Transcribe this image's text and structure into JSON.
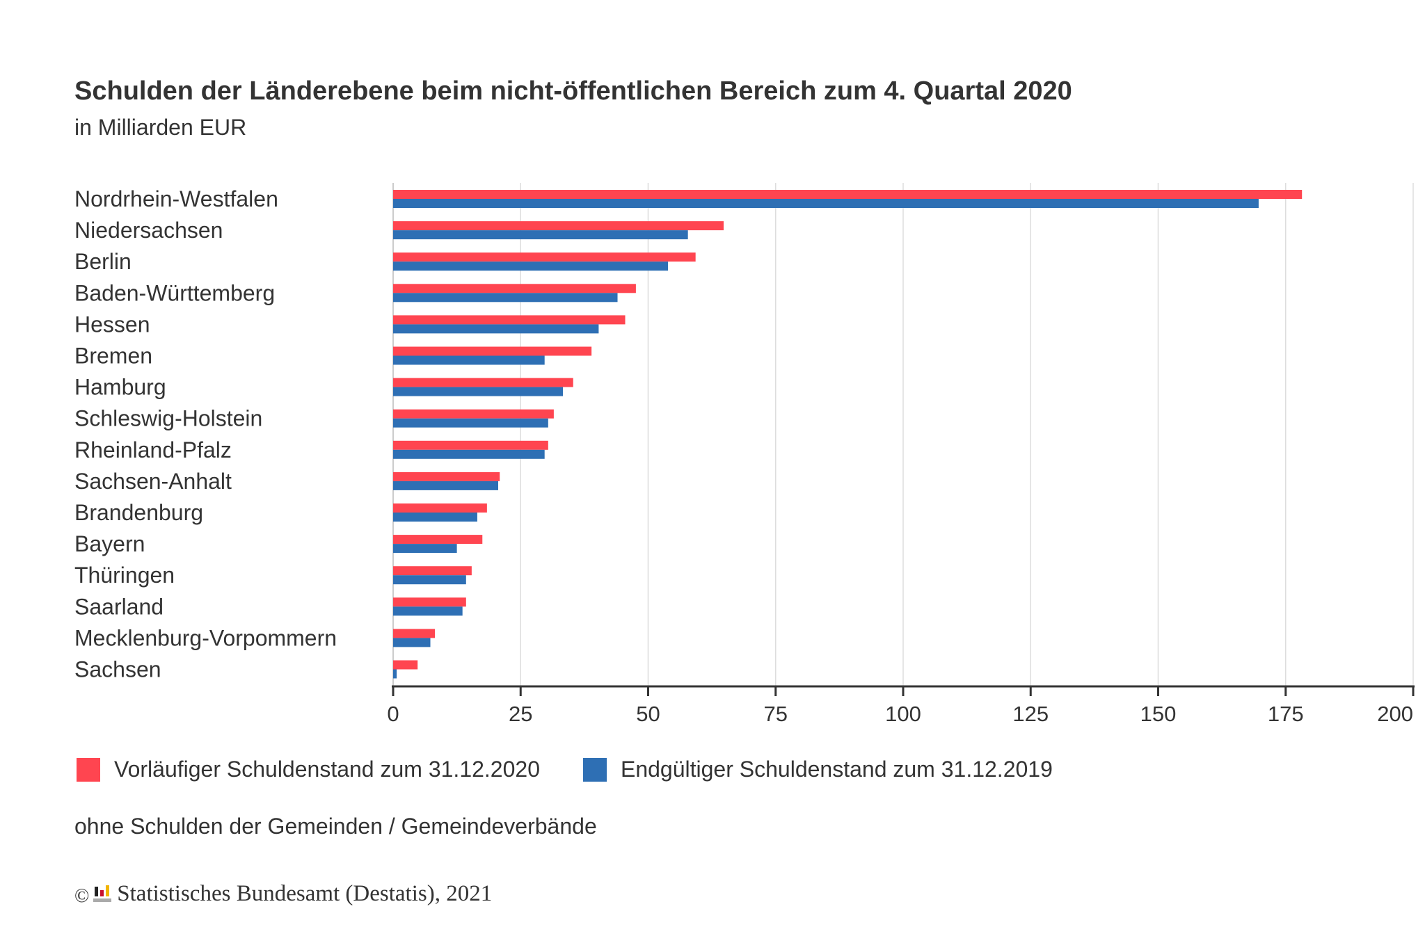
{
  "chart_data": {
    "type": "bar",
    "orientation": "horizontal",
    "title": "Schulden der Länderebene beim nicht-öffentlichen Bereich zum 4. Quartal 2020",
    "subtitle": "in Milliarden EUR",
    "categories": [
      "Nordrhein-Westfalen",
      "Niedersachsen",
      "Berlin",
      "Baden-Württemberg",
      "Hessen",
      "Bremen",
      "Hamburg",
      "Schleswig-Holstein",
      "Rheinland-Pfalz",
      "Sachsen-Anhalt",
      "Brandenburg",
      "Bayern",
      "Thüringen",
      "Saarland",
      "Mecklenburg-Vorpommern",
      "Sachsen"
    ],
    "series": [
      {
        "name": "Vorläufiger Schuldenstand zum 31.12.2020",
        "color": "#ff4550",
        "values": [
          178.2,
          64.8,
          59.3,
          47.6,
          45.5,
          38.9,
          35.3,
          31.5,
          30.4,
          20.9,
          18.4,
          17.5,
          15.4,
          14.3,
          8.2,
          4.8
        ]
      },
      {
        "name": "Endgültiger Schuldenstand zum 31.12.2019",
        "color": "#2e6fb4",
        "values": [
          169.7,
          57.8,
          53.9,
          44.0,
          40.3,
          29.7,
          33.3,
          30.4,
          29.7,
          20.6,
          16.5,
          12.5,
          14.3,
          13.6,
          7.3,
          0.7
        ]
      }
    ],
    "xlim": [
      0,
      200
    ],
    "xticks": [
      "0",
      "25",
      "50",
      "75",
      "100",
      "125",
      "150",
      "175",
      "200"
    ],
    "grid": true,
    "legend_position": "bottom-left",
    "note": "ohne Schulden der Gemeinden / Gemeindeverbände",
    "source": "Statistisches Bundesamt (Destatis), 2021",
    "copyright_symbol": "©"
  }
}
